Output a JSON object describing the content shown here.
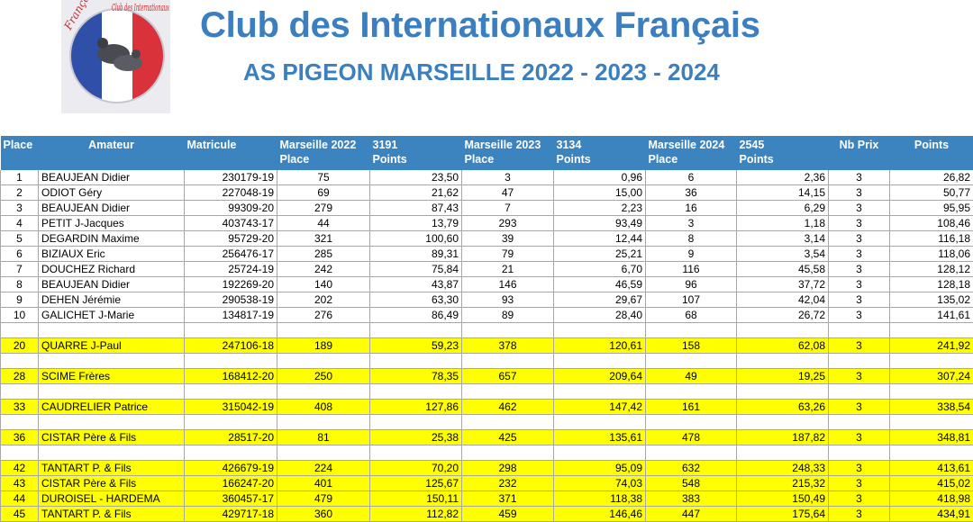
{
  "header": {
    "logo_text_left": "Français",
    "logo_text_arc": "Club des Internationaux",
    "title": "Club des Internationaux Français",
    "subtitle": "AS PIGEON MARSEILLE 2022 - 2023 - 2024"
  },
  "colors": {
    "header_blue": "#3b84bf",
    "title_blue": "#3b7fc0",
    "highlight": "#ffff00"
  },
  "table": {
    "headers": [
      [
        "Place"
      ],
      [
        "Amateur"
      ],
      [
        "Matricule"
      ],
      [
        "Marseille 2022",
        "Place"
      ],
      [
        "3191",
        "Points"
      ],
      [
        "Marseille 2023",
        "Place"
      ],
      [
        "3134",
        "Points"
      ],
      [
        "Marseille 2024",
        "Place"
      ],
      [
        "2545",
        "Points"
      ],
      [
        "Nb Prix"
      ],
      [
        "Points"
      ]
    ],
    "rows": [
      {
        "type": "data",
        "hl": false,
        "cells": [
          "1",
          "BEAUJEAN Didier",
          "230179-19",
          "75",
          "23,50",
          "3",
          "0,96",
          "6",
          "2,36",
          "3",
          "26,82"
        ]
      },
      {
        "type": "data",
        "hl": false,
        "cells": [
          "2",
          "ODIOT Géry",
          "227048-19",
          "69",
          "21,62",
          "47",
          "15,00",
          "36",
          "14,15",
          "3",
          "50,77"
        ]
      },
      {
        "type": "data",
        "hl": false,
        "cells": [
          "3",
          "BEAUJEAN Didier",
          "99309-20",
          "279",
          "87,43",
          "7",
          "2,23",
          "16",
          "6,29",
          "3",
          "95,95"
        ]
      },
      {
        "type": "data",
        "hl": false,
        "cells": [
          "4",
          "PETIT J-Jacques",
          "403743-17",
          "44",
          "13,79",
          "293",
          "93,49",
          "3",
          "1,18",
          "3",
          "108,46"
        ]
      },
      {
        "type": "data",
        "hl": false,
        "cells": [
          "5",
          "DEGARDIN Maxime",
          "95729-20",
          "321",
          "100,60",
          "39",
          "12,44",
          "8",
          "3,14",
          "3",
          "116,18"
        ]
      },
      {
        "type": "data",
        "hl": false,
        "cells": [
          "6",
          "BIZIAUX Eric",
          "256476-17",
          "285",
          "89,31",
          "79",
          "25,21",
          "9",
          "3,54",
          "3",
          "118,06"
        ]
      },
      {
        "type": "data",
        "hl": false,
        "cells": [
          "7",
          "DOUCHEZ Richard",
          "25724-19",
          "242",
          "75,84",
          "21",
          "6,70",
          "116",
          "45,58",
          "3",
          "128,12"
        ]
      },
      {
        "type": "data",
        "hl": false,
        "cells": [
          "8",
          "BEAUJEAN Didier",
          "192269-20",
          "140",
          "43,87",
          "146",
          "46,59",
          "96",
          "37,72",
          "3",
          "128,18"
        ]
      },
      {
        "type": "data",
        "hl": false,
        "cells": [
          "9",
          "DEHEN Jérémie",
          "290538-19",
          "202",
          "63,30",
          "93",
          "29,67",
          "107",
          "42,04",
          "3",
          "135,02"
        ]
      },
      {
        "type": "data",
        "hl": false,
        "cells": [
          "10",
          "GALICHET J-Marie",
          "134817-19",
          "276",
          "86,49",
          "89",
          "28,40",
          "68",
          "26,72",
          "3",
          "141,61"
        ]
      },
      {
        "type": "blank",
        "hl": false,
        "cells": [
          "",
          "",
          "",
          "",
          "",
          "",
          "",
          "",
          "",
          "",
          ""
        ]
      },
      {
        "type": "data",
        "hl": true,
        "cells": [
          "20",
          "QUARRE J-Paul",
          "247106-18",
          "189",
          "59,23",
          "378",
          "120,61",
          "158",
          "62,08",
          "3",
          "241,92"
        ]
      },
      {
        "type": "blank",
        "hl": false,
        "cells": [
          "",
          "",
          "",
          "",
          "",
          "",
          "",
          "",
          "",
          "",
          ""
        ]
      },
      {
        "type": "data",
        "hl": true,
        "cells": [
          "28",
          "SCIME Frères",
          "168412-20",
          "250",
          "78,35",
          "657",
          "209,64",
          "49",
          "19,25",
          "3",
          "307,24"
        ]
      },
      {
        "type": "blank",
        "hl": false,
        "cells": [
          "",
          "",
          "",
          "",
          "",
          "",
          "",
          "",
          "",
          "",
          ""
        ]
      },
      {
        "type": "data",
        "hl": true,
        "cells": [
          "33",
          "CAUDRELIER Patrice",
          "315042-19",
          "408",
          "127,86",
          "462",
          "147,42",
          "161",
          "63,26",
          "3",
          "338,54"
        ]
      },
      {
        "type": "blank",
        "hl": false,
        "cells": [
          "",
          "",
          "",
          "",
          "",
          "",
          "",
          "",
          "",
          "",
          ""
        ]
      },
      {
        "type": "data",
        "hl": true,
        "cells": [
          "36",
          "CISTAR Père & Fils",
          "28517-20",
          "81",
          "25,38",
          "425",
          "135,61",
          "478",
          "187,82",
          "3",
          "348,81"
        ]
      },
      {
        "type": "blank",
        "hl": false,
        "cells": [
          "",
          "",
          "",
          "",
          "",
          "",
          "",
          "",
          "",
          "",
          ""
        ]
      },
      {
        "type": "data",
        "hl": true,
        "cells": [
          "42",
          "TANTART P. & Fils",
          "426679-19",
          "224",
          "70,20",
          "298",
          "95,09",
          "632",
          "248,33",
          "3",
          "413,61"
        ]
      },
      {
        "type": "data",
        "hl": true,
        "cells": [
          "43",
          "CISTAR Père & Fils",
          "166247-20",
          "401",
          "125,67",
          "232",
          "74,03",
          "548",
          "215,32",
          "3",
          "415,02"
        ]
      },
      {
        "type": "data",
        "hl": true,
        "cells": [
          "44",
          "DUROISEL - HARDEMA",
          "360457-17",
          "479",
          "150,11",
          "371",
          "118,38",
          "383",
          "150,49",
          "3",
          "418,98"
        ]
      },
      {
        "type": "data",
        "hl": true,
        "cells": [
          "45",
          "TANTART P. & Fils",
          "429717-18",
          "360",
          "112,82",
          "459",
          "146,46",
          "447",
          "175,64",
          "3",
          "434,91"
        ]
      }
    ]
  }
}
